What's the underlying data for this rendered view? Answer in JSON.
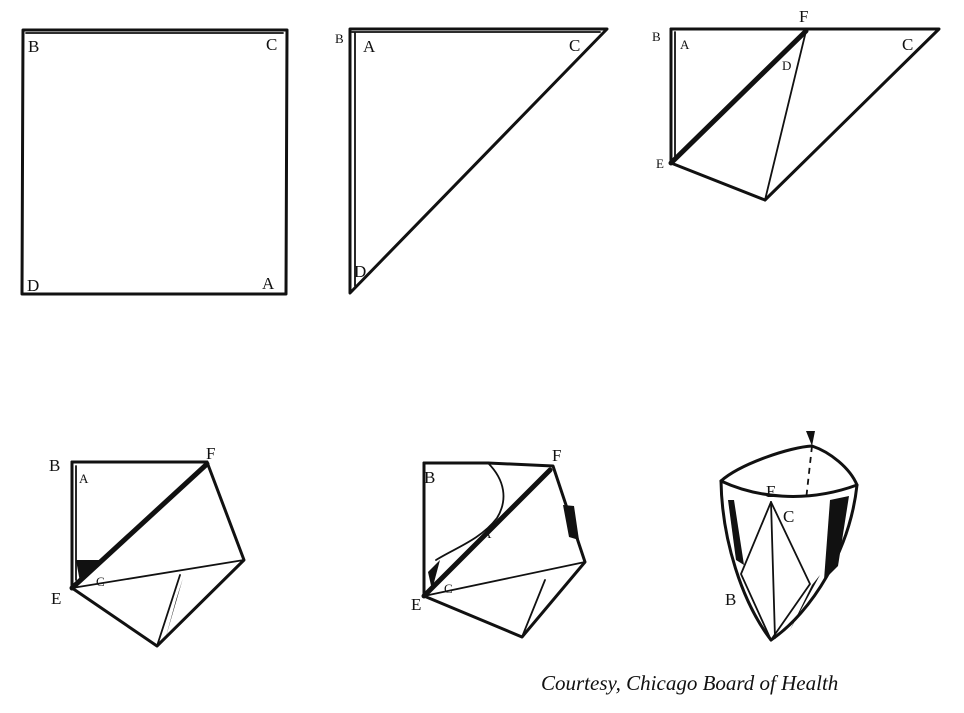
{
  "figure": {
    "credit": "Courtesy, Chicago Board of Health",
    "step1": {
      "labels": {
        "top_left": "B",
        "top_right": "C",
        "bottom_left": "D",
        "bottom_right": "A"
      }
    },
    "step2": {
      "labels": {
        "corner_outer": "B",
        "corner_inner": "A",
        "right": "C",
        "bottom": "D"
      }
    },
    "step3": {
      "labels": {
        "b": "B",
        "a": "A",
        "f": "F",
        "c": "C",
        "d": "D",
        "e": "E"
      }
    },
    "step4": {
      "labels": {
        "b": "B",
        "a": "A",
        "f": "F",
        "e": "E",
        "c": "C"
      }
    },
    "step5": {
      "labels": {
        "b": "B",
        "f": "F",
        "a": "A",
        "e": "E",
        "c": "C"
      }
    },
    "step6": {
      "labels": {
        "e": "E",
        "c": "C",
        "b": "B"
      }
    }
  }
}
